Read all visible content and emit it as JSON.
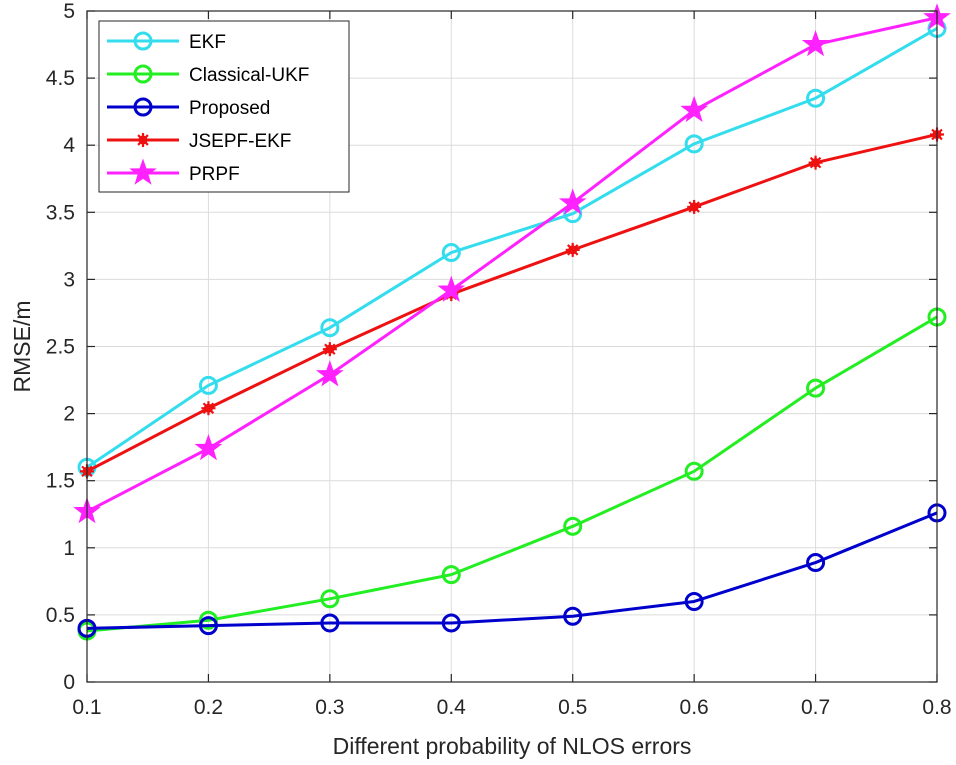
{
  "chart_data": {
    "type": "line",
    "title": "",
    "xlabel": "Different probability of NLOS errors",
    "ylabel": "RMSE/m",
    "x": [
      0.1,
      0.2,
      0.3,
      0.4,
      0.5,
      0.6,
      0.7,
      0.8
    ],
    "xlim": [
      0.1,
      0.8
    ],
    "ylim": [
      0,
      5
    ],
    "xticks": [
      "0.1",
      "0.2",
      "0.3",
      "0.4",
      "0.5",
      "0.6",
      "0.7",
      "0.8"
    ],
    "yticks": [
      "0",
      "0.5",
      "1",
      "1.5",
      "2",
      "2.5",
      "3",
      "3.5",
      "4",
      "4.5",
      "5"
    ],
    "grid": true,
    "legend_position": "top-left",
    "series": [
      {
        "name": "EKF",
        "color": "#33ddee",
        "marker": "circle",
        "values": [
          1.6,
          2.21,
          2.64,
          3.2,
          3.49,
          4.01,
          4.35,
          4.87
        ]
      },
      {
        "name": "Classical-UKF",
        "color": "#22ee22",
        "marker": "circle",
        "values": [
          0.38,
          0.46,
          0.62,
          0.8,
          1.16,
          1.57,
          2.19,
          2.72
        ]
      },
      {
        "name": "Proposed",
        "color": "#0000cc",
        "marker": "circle",
        "values": [
          0.4,
          0.42,
          0.44,
          0.44,
          0.49,
          0.6,
          0.89,
          1.26
        ]
      },
      {
        "name": "JSEPF-EKF",
        "color": "#ee1111",
        "marker": "asterisk",
        "values": [
          1.57,
          2.04,
          2.48,
          2.89,
          3.22,
          3.54,
          3.87,
          4.08
        ]
      },
      {
        "name": "PRPF",
        "color": "#ff22ff",
        "marker": "star",
        "values": [
          1.27,
          1.74,
          2.29,
          2.92,
          3.57,
          4.26,
          4.75,
          4.95
        ]
      }
    ]
  }
}
